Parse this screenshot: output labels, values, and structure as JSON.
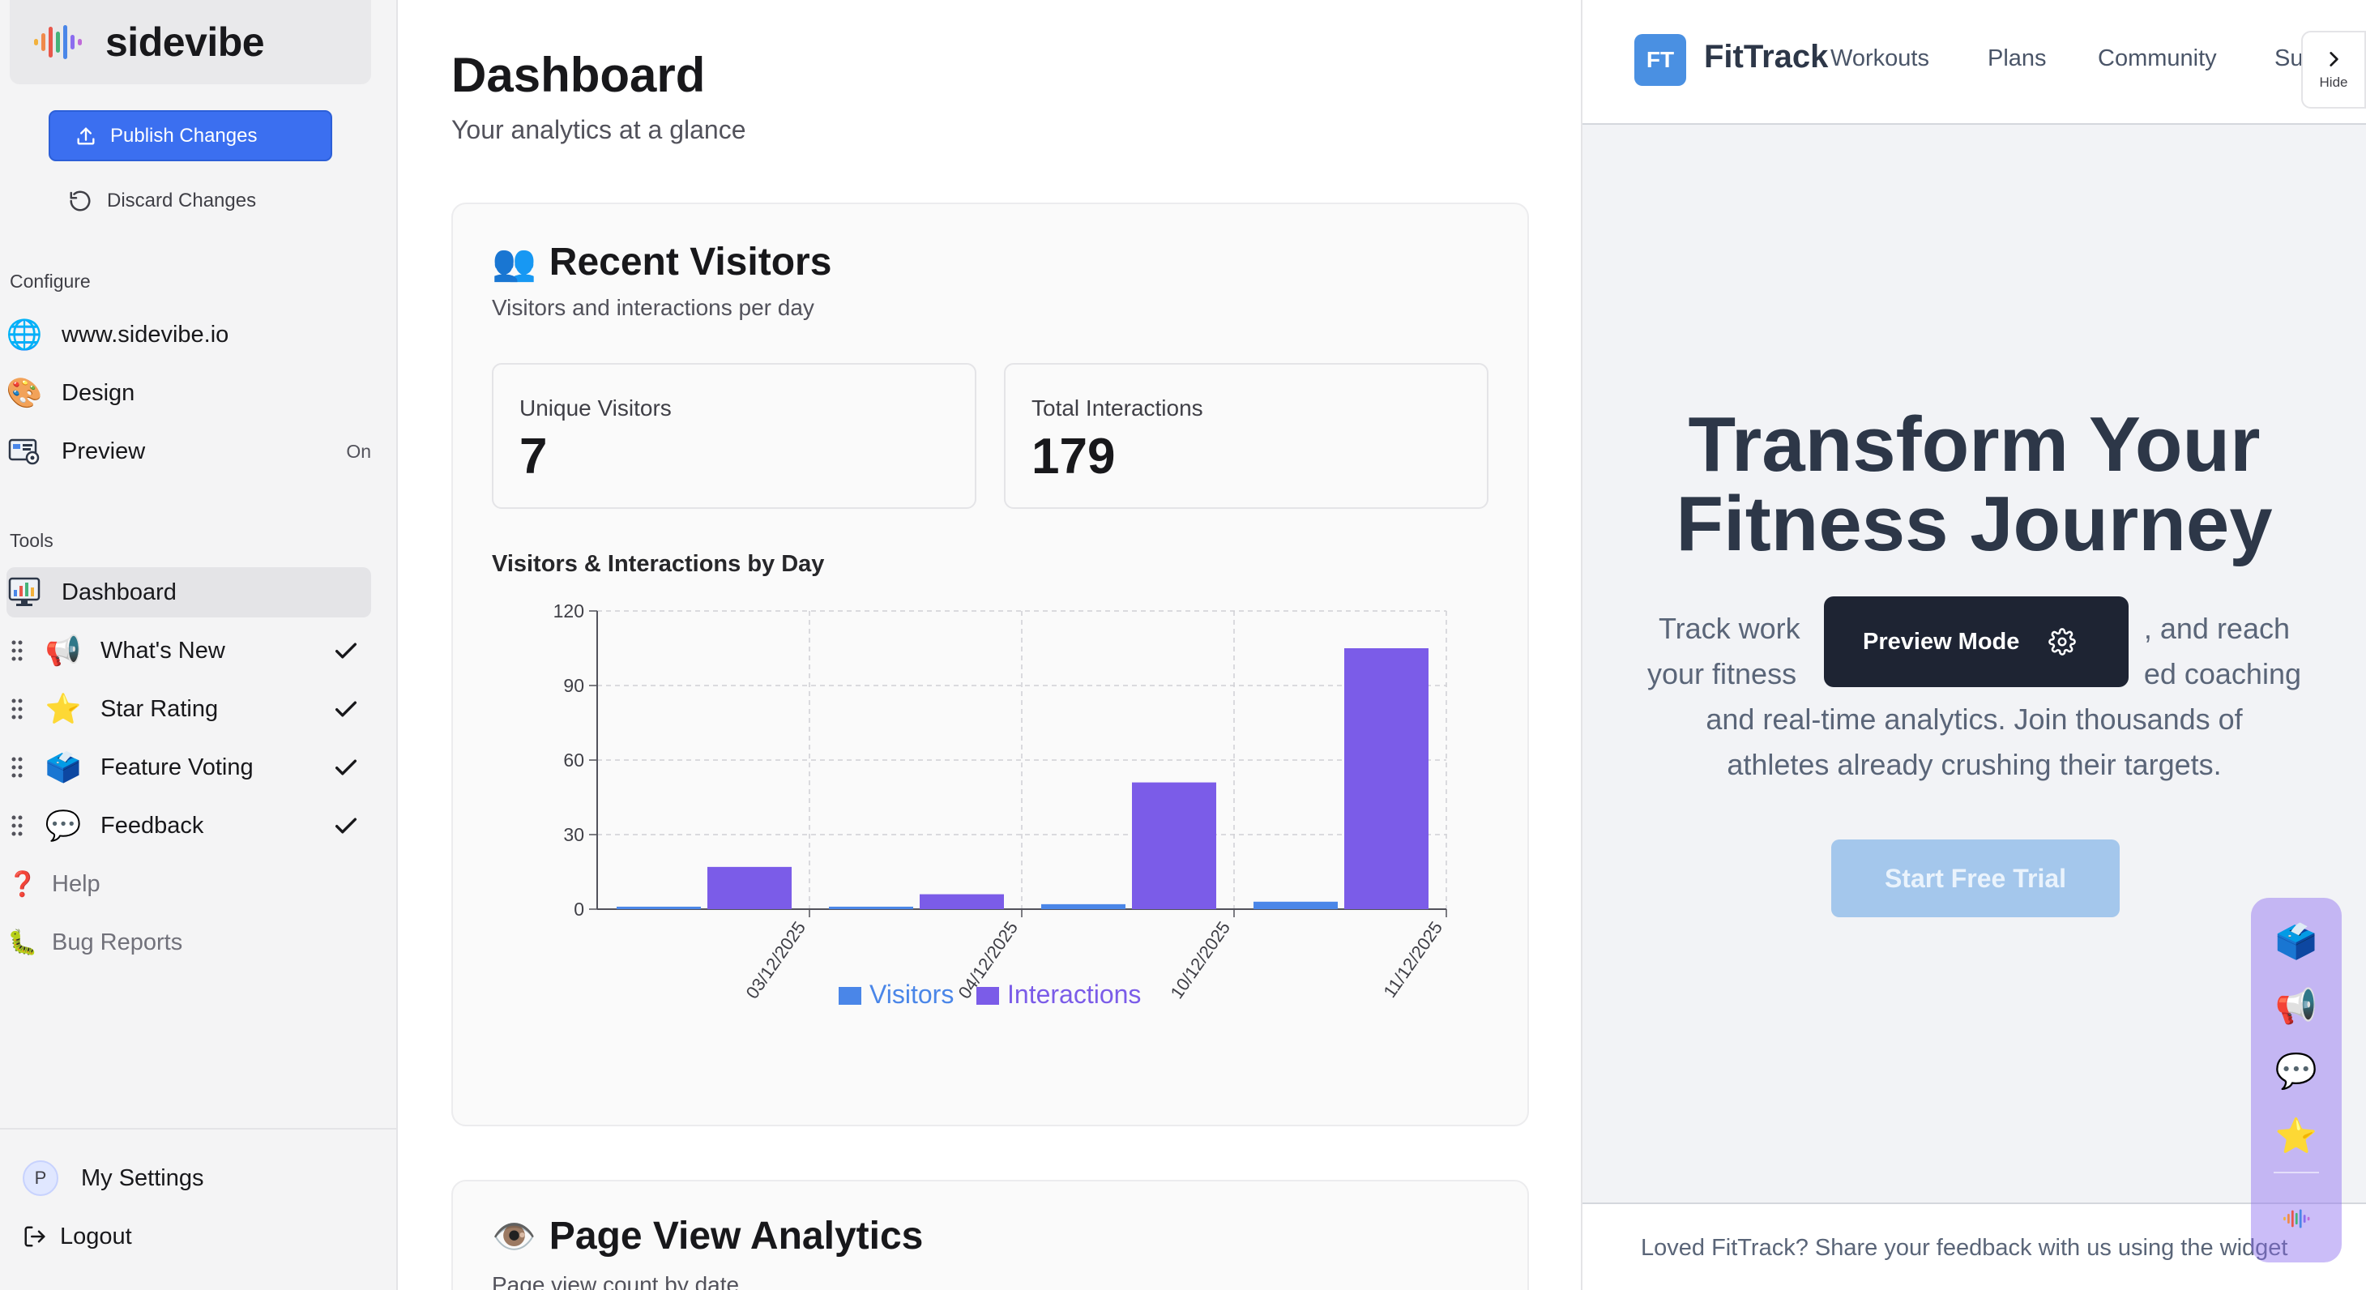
{
  "app": {
    "name": "sidevibe"
  },
  "sidebar": {
    "publish_label": "Publish Changes",
    "discard_label": "Discard Changes",
    "configure_label": "Configure",
    "configure_items": [
      {
        "label": "www.sidevibe.io",
        "icon": "globe-icon"
      },
      {
        "label": "Design",
        "icon": "palette-icon"
      },
      {
        "label": "Preview",
        "icon": "preview-icon",
        "status": "On"
      }
    ],
    "tools_label": "Tools",
    "tool_items": [
      {
        "label": "Dashboard",
        "icon": "dashboard-icon",
        "active": true
      },
      {
        "label": "What's New",
        "icon": "megaphone-icon",
        "checked": true
      },
      {
        "label": "Star Rating",
        "icon": "star-icon",
        "checked": true
      },
      {
        "label": "Feature Voting",
        "icon": "ballot-box-icon",
        "checked": true
      },
      {
        "label": "Feedback",
        "icon": "speech-bubble-icon",
        "checked": true
      },
      {
        "label": "Help",
        "icon": "question-icon"
      },
      {
        "label": "Bug Reports",
        "icon": "bug-icon"
      }
    ],
    "settings_avatar": "P",
    "settings_label": "My Settings",
    "logout_label": "Logout"
  },
  "main": {
    "title": "Dashboard",
    "subtitle": "Your analytics at a glance",
    "recent": {
      "title": "Recent Visitors",
      "subtitle": "Visitors and interactions per day",
      "stats": [
        {
          "label": "Unique Visitors",
          "value": "7"
        },
        {
          "label": "Total Interactions",
          "value": "179"
        }
      ],
      "chart_title": "Visitors & Interactions by Day"
    },
    "page_views": {
      "title": "Page View Analytics",
      "subtitle": "Page view count by date"
    }
  },
  "chart_data": {
    "type": "bar",
    "title": "Visitors & Interactions by Day",
    "categories": [
      "03/12/2025",
      "04/12/2025",
      "10/12/2025",
      "11/12/2025"
    ],
    "series": [
      {
        "name": "Visitors",
        "values": [
          1,
          1,
          2,
          3
        ],
        "color": "#4a86e8"
      },
      {
        "name": "Interactions",
        "values": [
          17,
          6,
          51,
          105
        ],
        "color": "#7b5ce8"
      }
    ],
    "ylim": [
      0,
      120
    ],
    "yticks": [
      "0",
      "30",
      "60",
      "90",
      "120"
    ],
    "grid": true,
    "legend": "bottom"
  },
  "preview": {
    "site": {
      "badge": "FT",
      "name": "FitTrack",
      "nav": [
        "Workouts",
        "Plans",
        "Community",
        "Su"
      ],
      "hide_label": "Hide"
    },
    "hero_title_line1": "Transform Your",
    "hero_title_line2": "Fitness Journey",
    "hero_lines": [
      "Track work",
      ", and reach",
      "your fitness",
      "ed coaching",
      "and real-time analytics. Join thousands of",
      "athletes already crushing their targets."
    ],
    "cta": "Start Free Trial",
    "overlay_label": "Preview Mode",
    "footer_text": "Loved FitTrack? Share your feedback with us using the widget",
    "widget_icons": [
      "ballot-box-icon",
      "megaphone-icon",
      "speech-bubble-icon",
      "star-icon",
      "sidevibe-logo-icon"
    ]
  },
  "colors": {
    "accent": "#3b6ff0",
    "visitors": "#4a86e8",
    "interactions": "#7b5ce8",
    "fittrack_blue": "#4a90e2"
  }
}
